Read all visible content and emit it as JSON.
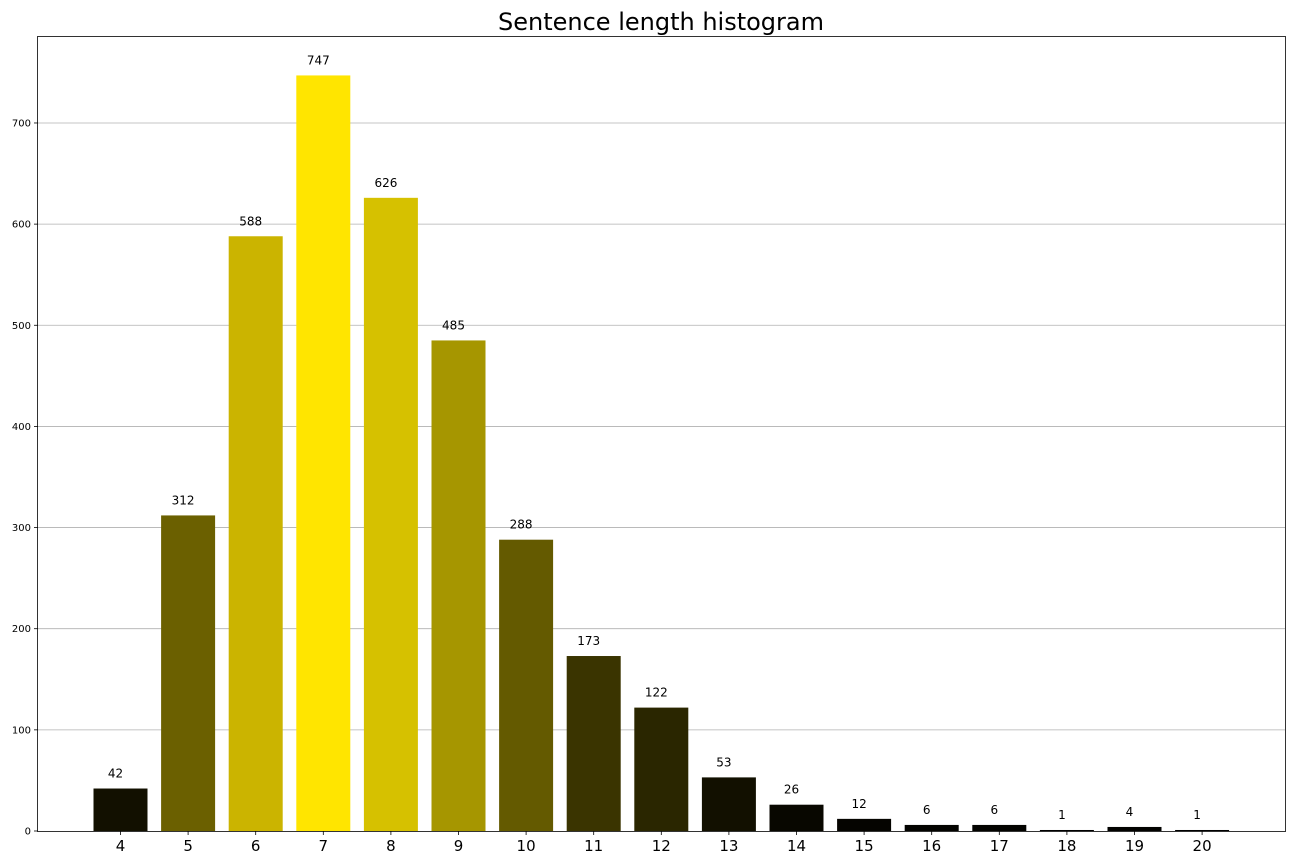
{
  "chart_data": {
    "type": "bar",
    "title": "Sentence length histogram",
    "xlabel": "",
    "ylabel": "",
    "categories": [
      "4",
      "5",
      "6",
      "7",
      "8",
      "9",
      "10",
      "11",
      "12",
      "13",
      "14",
      "15",
      "16",
      "17",
      "18",
      "19",
      "20"
    ],
    "values": [
      42,
      312,
      588,
      747,
      626,
      485,
      288,
      173,
      122,
      53,
      26,
      12,
      6,
      6,
      1,
      4,
      1
    ],
    "data_labels": [
      "42",
      "312",
      "588",
      "747",
      "626",
      "485",
      "288",
      "173",
      "122",
      "53",
      "26",
      "12",
      "6",
      "6",
      "1",
      "4",
      "1"
    ],
    "colors": [
      "#121000",
      "#6b6000",
      "#cbb400",
      "#ffe500",
      "#d6c100",
      "#a69600",
      "#645a00",
      "#3a3400",
      "#2a2600",
      "#121000",
      "#080700",
      "#050400",
      "#030300",
      "#030300",
      "#000000",
      "#020200",
      "#000000"
    ],
    "ylim": [
      0,
      785
    ],
    "yticks": [
      0,
      100,
      200,
      300,
      400,
      500,
      600,
      700
    ],
    "ytick_labels": [
      "0",
      "100",
      "200",
      "300",
      "400",
      "500",
      "600",
      "700"
    ],
    "grid": "y",
    "legend": "none"
  }
}
